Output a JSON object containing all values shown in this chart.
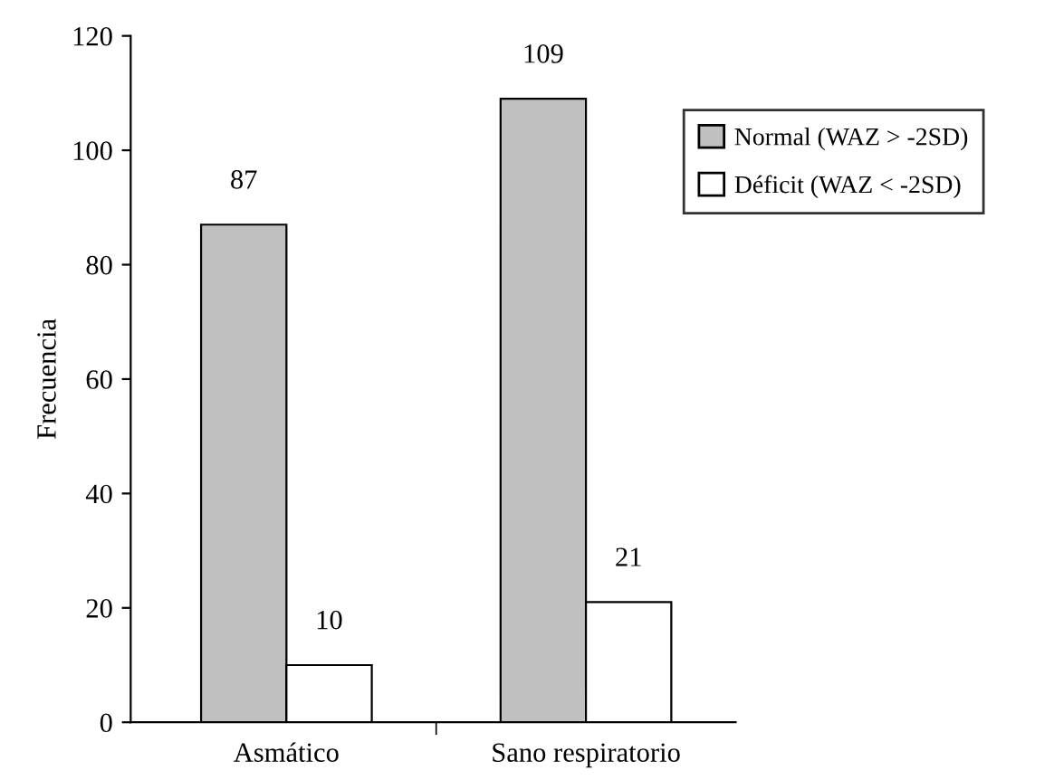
{
  "chart_data": {
    "type": "bar",
    "ylabel": "Frecuencia",
    "categories": [
      "Asmático",
      "Sano respiratorio"
    ],
    "series": [
      {
        "name": "Normal (WAZ > -2SD)",
        "color": "#c0c0c0",
        "values": [
          87,
          109
        ]
      },
      {
        "name": "Déficit (WAZ < -2SD)",
        "color": "#ffffff",
        "values": [
          10,
          21
        ]
      }
    ],
    "ylim": [
      0,
      120
    ],
    "yticks": [
      0,
      20,
      40,
      60,
      80,
      100,
      120
    ],
    "data_labels": true,
    "legend": "top right",
    "grid": false
  }
}
